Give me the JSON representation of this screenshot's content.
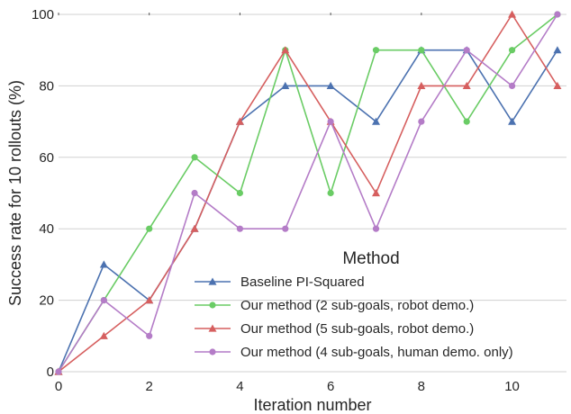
{
  "chart_data": {
    "type": "line",
    "xlabel": "Iteration number",
    "ylabel": "Success rate for 10 rollouts (%)",
    "xlim": [
      0,
      11.2
    ],
    "ylim": [
      0,
      100
    ],
    "xticks": [
      0,
      2,
      4,
      6,
      8,
      10
    ],
    "yticks": [
      0,
      20,
      40,
      60,
      80,
      100
    ],
    "grid": "horizontal",
    "legend": {
      "title": "Method",
      "placement": "lower-right"
    },
    "x": [
      0,
      1,
      2,
      3,
      4,
      5,
      6,
      7,
      8,
      9,
      10,
      11
    ],
    "series": [
      {
        "name": "Baseline PI-Squared",
        "color": "#4c72b0",
        "marker": "triangle",
        "values": [
          0,
          30,
          20,
          40,
          70,
          80,
          80,
          70,
          90,
          90,
          70,
          90
        ]
      },
      {
        "name": "Our method (2 sub-goals, robot demo.)",
        "color": "#6acc65",
        "marker": "circle",
        "values": [
          0,
          20,
          40,
          60,
          50,
          90,
          50,
          90,
          90,
          70,
          90,
          100
        ]
      },
      {
        "name": "Our method (5 sub-goals, robot demo.)",
        "color": "#d65f5f",
        "marker": "triangle",
        "values": [
          0,
          10,
          20,
          40,
          70,
          90,
          70,
          50,
          80,
          80,
          100,
          80
        ]
      },
      {
        "name": "Our method (4 sub-goals, human demo. only)",
        "color": "#b47cc7",
        "marker": "circle",
        "values": [
          0,
          20,
          10,
          50,
          40,
          40,
          70,
          40,
          70,
          90,
          80,
          100
        ]
      }
    ]
  }
}
